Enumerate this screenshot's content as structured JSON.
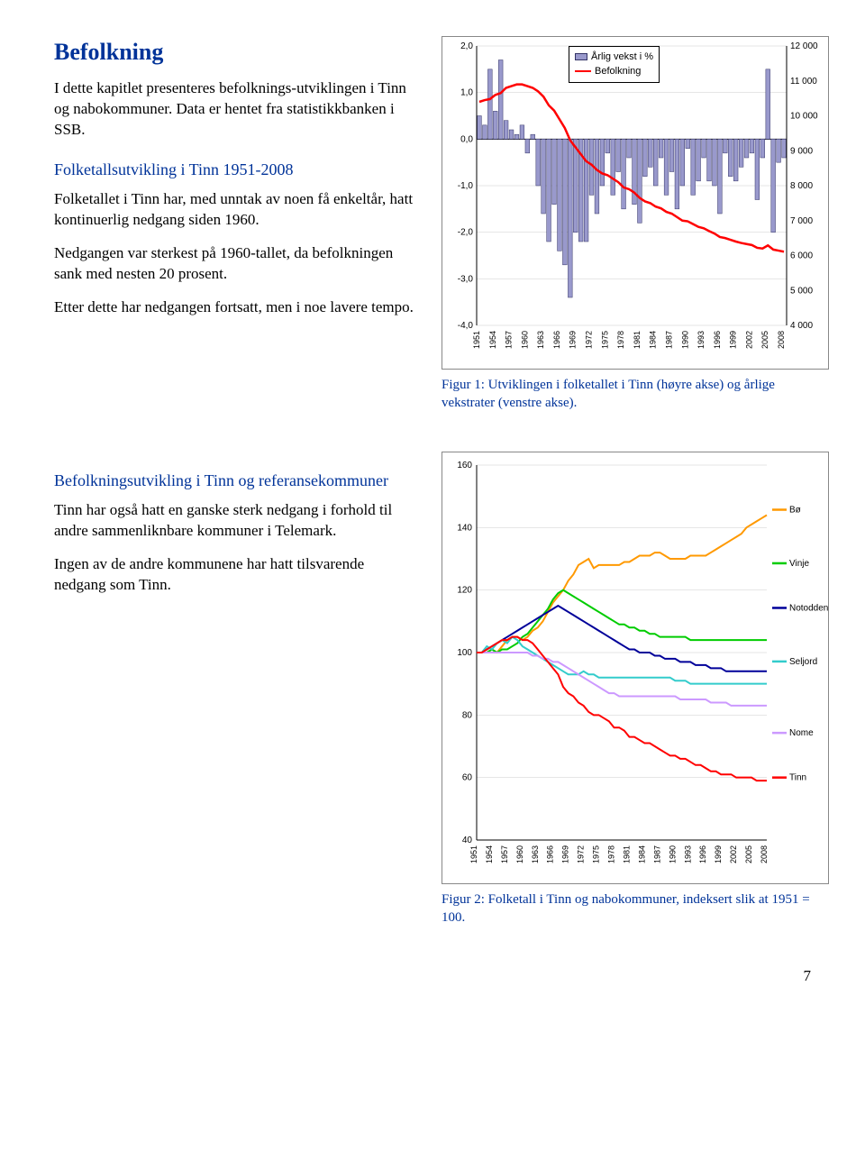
{
  "title": "Befolkning",
  "intro": "I dette kapitlet presenteres befolknings-utviklingen i Tinn og nabokommuner. Data er hentet fra statistikkbanken i SSB.",
  "sec1_title": "Folketallsutvikling i Tinn 1951-2008",
  "sec1_p1": "Folketallet i Tinn har, med unntak av noen få enkeltår, hatt kontinuerlig nedgang siden 1960.",
  "sec1_p2": "Nedgangen var sterkest på 1960-tallet, da befolkningen sank med nesten 20 prosent.",
  "sec1_p3": "Etter dette har nedgangen fortsatt, men i noe lavere tempo.",
  "sec2_title": "Befolkningsutvikling i Tinn og referansekommuner",
  "sec2_p1": "Tinn har også hatt en ganske sterk nedgang i forhold til andre sammenliknbare kommuner i Telemark.",
  "sec2_p2": "Ingen av de andre kommunene har hatt tilsvarende nedgang som Tinn.",
  "caption1": "Figur 1: Utviklingen i folketallet i Tinn (høyre akse) og årlige vekstrater (venstre akse).",
  "caption2": "Figur 2: Folketall i Tinn og nabokommuner, indeksert slik at 1951 = 100.",
  "page_number": "7",
  "chart1": {
    "type": "bar+line-dual-axis",
    "x_labels": [
      "1951",
      "1954",
      "1957",
      "1960",
      "1963",
      "1966",
      "1969",
      "1972",
      "1975",
      "1978",
      "1981",
      "1984",
      "1987",
      "1990",
      "1993",
      "1996",
      "1999",
      "2002",
      "2005",
      "2008"
    ],
    "left_axis": {
      "min": -4.0,
      "max": 2.0,
      "step": 1.0,
      "fmt": ",0"
    },
    "right_axis": {
      "min": 4000,
      "max": 12000,
      "step": 1000,
      "labels": [
        "4 000",
        "5 000",
        "6 000",
        "7 000",
        "8 000",
        "9 000",
        "10 000",
        "11 000",
        "12 000"
      ]
    },
    "bar_color": "#9999cc",
    "bar_border": "#333366",
    "line_color": "#ff0000",
    "grid_color": "#000000",
    "background": "#ffffff",
    "legend": {
      "series1": "Årlig vekst i %",
      "series2": "Befolkning"
    },
    "bars": [
      0.5,
      0.3,
      1.5,
      0.6,
      1.7,
      0.4,
      0.2,
      0.1,
      0.3,
      -0.3,
      0.1,
      -1.0,
      -1.6,
      -2.2,
      -1.4,
      -2.4,
      -2.7,
      -3.4,
      -2.0,
      -2.2,
      -2.2,
      -1.2,
      -1.6,
      -1.0,
      -0.3,
      -1.2,
      -0.7,
      -1.5,
      -0.4,
      -1.4,
      -1.8,
      -0.8,
      -0.6,
      -1.0,
      -0.4,
      -1.2,
      -0.7,
      -1.5,
      -1.0,
      -0.2,
      -1.2,
      -0.9,
      -0.4,
      -0.9,
      -1.0,
      -1.6,
      -0.3,
      -0.8,
      -0.9,
      -0.6,
      -0.4,
      -0.3,
      -1.3,
      -0.4,
      1.5,
      -2.0,
      -0.5,
      -0.4
    ],
    "population_line": [
      10400,
      10450,
      10480,
      10600,
      10650,
      10800,
      10850,
      10900,
      10900,
      10850,
      10800,
      10700,
      10550,
      10300,
      10150,
      9900,
      9650,
      9300,
      9100,
      8900,
      8700,
      8600,
      8450,
      8350,
      8300,
      8200,
      8100,
      7950,
      7900,
      7800,
      7650,
      7550,
      7500,
      7400,
      7350,
      7250,
      7200,
      7100,
      7000,
      6980,
      6900,
      6820,
      6780,
      6700,
      6630,
      6530,
      6500,
      6450,
      6400,
      6360,
      6330,
      6300,
      6220,
      6200,
      6290,
      6170,
      6140,
      6110
    ]
  },
  "chart2": {
    "type": "line",
    "x_labels": [
      "1951",
      "1954",
      "1957",
      "1960",
      "1963",
      "1966",
      "1969",
      "1972",
      "1975",
      "1978",
      "1981",
      "1984",
      "1987",
      "1990",
      "1993",
      "1996",
      "1999",
      "2002",
      "2005",
      "2008"
    ],
    "y_axis": {
      "min": 40,
      "max": 160,
      "step": 20
    },
    "series": [
      {
        "name": "Bø",
        "color": "#ff9900",
        "values": [
          100,
          100,
          100,
          101,
          100,
          102,
          104,
          105,
          105,
          104,
          105,
          107,
          108,
          110,
          113,
          116,
          118,
          120,
          123,
          125,
          128,
          129,
          130,
          127,
          128,
          128,
          128,
          128,
          128,
          129,
          129,
          130,
          131,
          131,
          131,
          132,
          132,
          131,
          130,
          130,
          130,
          130,
          131,
          131,
          131,
          131,
          132,
          133,
          134,
          135,
          136,
          137,
          138,
          140,
          141,
          142,
          143,
          144
        ]
      },
      {
        "name": "Vinje",
        "color": "#00cc00",
        "values": [
          100,
          100,
          100,
          101,
          100,
          101,
          101,
          102,
          103,
          105,
          106,
          108,
          110,
          112,
          114,
          117,
          119,
          120,
          119,
          118,
          117,
          116,
          115,
          114,
          113,
          112,
          111,
          110,
          109,
          109,
          108,
          108,
          107,
          107,
          106,
          106,
          105,
          105,
          105,
          105,
          105,
          105,
          104,
          104,
          104,
          104,
          104,
          104,
          104,
          104,
          104,
          104,
          104,
          104,
          104,
          104,
          104,
          104
        ]
      },
      {
        "name": "Notodden",
        "color": "#000099",
        "values": [
          100,
          100,
          101,
          102,
          103,
          104,
          105,
          106,
          107,
          108,
          109,
          110,
          111,
          112,
          113,
          114,
          115,
          114,
          113,
          112,
          111,
          110,
          109,
          108,
          107,
          106,
          105,
          104,
          103,
          102,
          101,
          101,
          100,
          100,
          100,
          99,
          99,
          98,
          98,
          98,
          97,
          97,
          97,
          96,
          96,
          96,
          95,
          95,
          95,
          94,
          94,
          94,
          94,
          94,
          94,
          94,
          94,
          94
        ]
      },
      {
        "name": "Seljord",
        "color": "#33cccc",
        "values": [
          100,
          100,
          102,
          101,
          103,
          104,
          103,
          105,
          104,
          102,
          101,
          100,
          99,
          98,
          97,
          96,
          95,
          94,
          93,
          93,
          93,
          94,
          93,
          93,
          92,
          92,
          92,
          92,
          92,
          92,
          92,
          92,
          92,
          92,
          92,
          92,
          92,
          92,
          92,
          91,
          91,
          91,
          90,
          90,
          90,
          90,
          90,
          90,
          90,
          90,
          90,
          90,
          90,
          90,
          90,
          90,
          90,
          90
        ]
      },
      {
        "name": "Nome",
        "color": "#cc99ff",
        "values": [
          100,
          100,
          100,
          100,
          100,
          100,
          100,
          100,
          100,
          100,
          100,
          99,
          99,
          98,
          98,
          97,
          97,
          96,
          95,
          94,
          93,
          92,
          91,
          90,
          89,
          88,
          87,
          87,
          86,
          86,
          86,
          86,
          86,
          86,
          86,
          86,
          86,
          86,
          86,
          86,
          85,
          85,
          85,
          85,
          85,
          85,
          84,
          84,
          84,
          84,
          83,
          83,
          83,
          83,
          83,
          83,
          83,
          83
        ]
      },
      {
        "name": "Tinn",
        "color": "#ff0000",
        "values": [
          100,
          100,
          101,
          102,
          103,
          104,
          104,
          105,
          105,
          104,
          104,
          103,
          101,
          99,
          97,
          95,
          93,
          89,
          87,
          86,
          84,
          83,
          81,
          80,
          80,
          79,
          78,
          76,
          76,
          75,
          73,
          73,
          72,
          71,
          71,
          70,
          69,
          68,
          67,
          67,
          66,
          66,
          65,
          64,
          64,
          63,
          62,
          62,
          61,
          61,
          61,
          60,
          60,
          60,
          60,
          59,
          59,
          59
        ]
      }
    ]
  }
}
